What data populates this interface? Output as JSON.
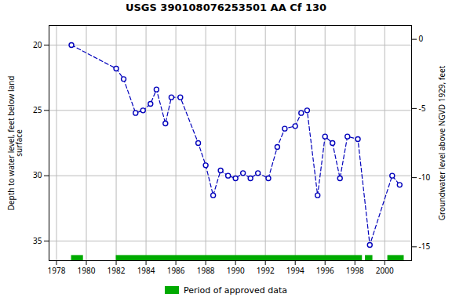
{
  "chart_data": {
    "type": "line",
    "title": "USGS 390108076253501 AA Cf 130",
    "ylabel": "Depth to water level, feet below land\nsurface",
    "y2label": "Groundwater level above NGVD 1929, feet",
    "x": [
      1979.0,
      1982.0,
      1982.5,
      1983.3,
      1983.8,
      1984.3,
      1984.7,
      1985.3,
      1985.7,
      1986.3,
      1987.5,
      1988.0,
      1988.5,
      1989.0,
      1989.5,
      1990.0,
      1990.5,
      1991.0,
      1991.5,
      1992.2,
      1992.8,
      1993.3,
      1994.0,
      1994.4,
      1994.8,
      1995.5,
      1996.0,
      1996.5,
      1997.0,
      1997.5,
      1998.2,
      1999.0,
      2000.5,
      2001.0
    ],
    "values": [
      20.0,
      21.8,
      22.6,
      25.2,
      25.0,
      24.5,
      23.4,
      26.0,
      24.0,
      24.0,
      27.5,
      29.2,
      31.5,
      29.6,
      30.0,
      30.2,
      29.8,
      30.2,
      29.8,
      30.2,
      27.8,
      26.4,
      26.2,
      25.2,
      25.0,
      31.5,
      27.0,
      27.5,
      30.2,
      27.0,
      27.2,
      35.3,
      30.0,
      30.7
    ],
    "color": "#0000bb",
    "line_style": "dashed",
    "marker": "circle",
    "xlim": [
      1977.5,
      2001.8
    ],
    "xticks": [
      1978,
      1980,
      1982,
      1984,
      1986,
      1988,
      1990,
      1992,
      1994,
      1996,
      1998,
      2000
    ],
    "ylim": [
      36.5,
      18.5
    ],
    "yticks": [
      20,
      25,
      30,
      35
    ],
    "y2lim": [
      -16.0,
      1.0
    ],
    "y2ticks": [
      0,
      -5,
      -10,
      -15
    ],
    "grid": true,
    "legend": "bottom",
    "approved_periods": {
      "name": "Period of approved data",
      "color": "#00aa00",
      "ranges": [
        [
          1979.0,
          1979.8
        ],
        [
          1982.0,
          1998.5
        ],
        [
          1998.7,
          1999.2
        ],
        [
          2000.2,
          2001.3
        ]
      ]
    }
  }
}
